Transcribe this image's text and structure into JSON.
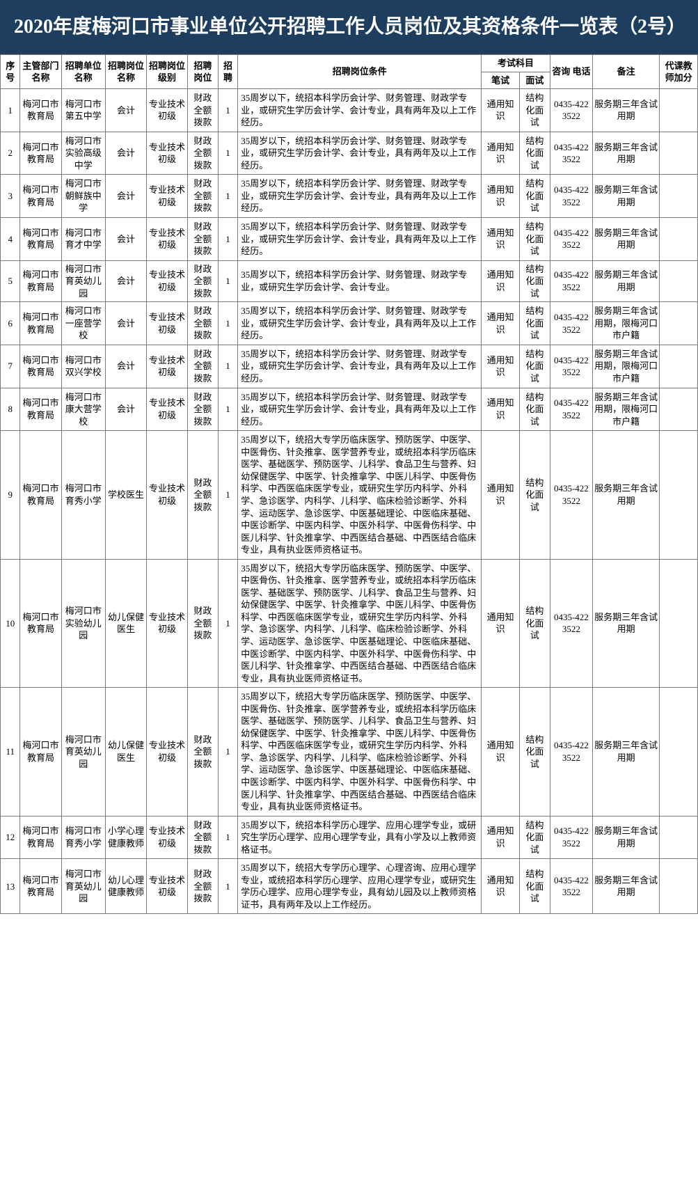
{
  "title": "2020年度梅河口市事业单位公开招聘工作人员岗位及其资格条件一览表（2号）",
  "headers": {
    "seq": "序号",
    "dept": "主管部门名称",
    "unit": "招聘单位名称",
    "pos": "招聘岗位名称",
    "level": "招聘岗位级别",
    "fund": "招聘岗位",
    "count": "招聘",
    "cond": "招聘岗位条件",
    "exam": "考试科目",
    "exam1": "笔试",
    "exam2": "面试",
    "phone": "咨询 电话",
    "note": "备注",
    "bonus": "代课教师加分"
  },
  "rows": [
    {
      "seq": "1",
      "dept": "梅河口市教育局",
      "unit": "梅河口市第五中学",
      "pos": "会计",
      "level": "专业技术初级",
      "fund": "财政全额拨款",
      "count": "1",
      "cond": "35周岁以下，统招本科学历会计学、财务管理、财政学专业，或研究生学历会计学、会计专业，具有两年及以上工作经历。",
      "exam1": "通用知识",
      "exam2": "结构化面试",
      "phone": "0435-4223522",
      "note": "服务期三年含试用期",
      "bonus": ""
    },
    {
      "seq": "2",
      "dept": "梅河口市教育局",
      "unit": "梅河口市实验高级中学",
      "pos": "会计",
      "level": "专业技术初级",
      "fund": "财政全额拨款",
      "count": "1",
      "cond": "35周岁以下，统招本科学历会计学、财务管理、财政学专业，或研究生学历会计学、会计专业，具有两年及以上工作经历。",
      "exam1": "通用知识",
      "exam2": "结构化面试",
      "phone": "0435-4223522",
      "note": "服务期三年含试用期",
      "bonus": ""
    },
    {
      "seq": "3",
      "dept": "梅河口市教育局",
      "unit": "梅河口市朝鲜族中学",
      "pos": "会计",
      "level": "专业技术初级",
      "fund": "财政全额拨款",
      "count": "1",
      "cond": "35周岁以下，统招本科学历会计学、财务管理、财政学专业，或研究生学历会计学、会计专业，具有两年及以上工作经历。",
      "exam1": "通用知识",
      "exam2": "结构化面试",
      "phone": "0435-4223522",
      "note": "服务期三年含试用期",
      "bonus": ""
    },
    {
      "seq": "4",
      "dept": "梅河口市教育局",
      "unit": "梅河口市育才中学",
      "pos": "会计",
      "level": "专业技术初级",
      "fund": "财政全额拨款",
      "count": "1",
      "cond": "35周岁以下，统招本科学历会计学、财务管理、财政学专业，或研究生学历会计学、会计专业，具有两年及以上工作经历。",
      "exam1": "通用知识",
      "exam2": "结构化面试",
      "phone": "0435-4223522",
      "note": "服务期三年含试用期",
      "bonus": ""
    },
    {
      "seq": "5",
      "dept": "梅河口市教育局",
      "unit": "梅河口市育英幼儿园",
      "pos": "会计",
      "level": "专业技术初级",
      "fund": "财政全额拨款",
      "count": "1",
      "cond": "35周岁以下，统招本科学历会计学、财务管理、财政学专业，或研究生学历会计学、会计专业。",
      "exam1": "通用知识",
      "exam2": "结构化面试",
      "phone": "0435-4223522",
      "note": "服务期三年含试用期",
      "bonus": ""
    },
    {
      "seq": "6",
      "dept": "梅河口市教育局",
      "unit": "梅河口市一座营学校",
      "pos": "会计",
      "level": "专业技术初级",
      "fund": "财政全额拨款",
      "count": "1",
      "cond": "35周岁以下，统招本科学历会计学、财务管理、财政学专业，或研究生学历会计学、会计专业，具有两年及以上工作经历。",
      "exam1": "通用知识",
      "exam2": "结构化面试",
      "phone": "0435-4223522",
      "note": "服务期三年含试用期，限梅河口市户籍",
      "bonus": ""
    },
    {
      "seq": "7",
      "dept": "梅河口市教育局",
      "unit": "梅河口市双兴学校",
      "pos": "会计",
      "level": "专业技术初级",
      "fund": "财政全额拨款",
      "count": "1",
      "cond": "35周岁以下，统招本科学历会计学、财务管理、财政学专业，或研究生学历会计学、会计专业，具有两年及以上工作经历。",
      "exam1": "通用知识",
      "exam2": "结构化面试",
      "phone": "0435-4223522",
      "note": "服务期三年含试用期，限梅河口市户籍",
      "bonus": ""
    },
    {
      "seq": "8",
      "dept": "梅河口市教育局",
      "unit": "梅河口市康大营学校",
      "pos": "会计",
      "level": "专业技术初级",
      "fund": "财政全额拨款",
      "count": "1",
      "cond": "35周岁以下，统招本科学历会计学、财务管理、财政学专业，或研究生学历会计学、会计专业，具有两年及以上工作经历。",
      "exam1": "通用知识",
      "exam2": "结构化面试",
      "phone": "0435-4223522",
      "note": "服务期三年含试用期，限梅河口市户籍",
      "bonus": ""
    },
    {
      "seq": "9",
      "dept": "梅河口市教育局",
      "unit": "梅河口市育秀小学",
      "pos": "学校医生",
      "level": "专业技术初级",
      "fund": "财政全额拨款",
      "count": "1",
      "cond": "35周岁以下，统招大专学历临床医学、预防医学、中医学、中医骨伤、针灸推拿、医学营养专业，或统招本科学历临床医学、基础医学、预防医学、儿科学、食品卫生与营养、妇幼保健医学、中医学、针灸推拿学、中医儿科学、中医骨伤科学、中西医临床医学专业，或研究生学历内科学、外科学、急诊医学、内科学、儿科学、临床检验诊断学、外科学、运动医学、急诊医学、中医基础理论、中医临床基础、中医诊断学、中医内科学、中医外科学、中医骨伤科学、中医儿科学、针灸推拿学、中西医结合基础、中西医结合临床专业，具有执业医师资格证书。",
      "exam1": "通用知识",
      "exam2": "结构化面试",
      "phone": "0435-4223522",
      "note": "服务期三年含试用期",
      "bonus": ""
    },
    {
      "seq": "10",
      "dept": "梅河口市教育局",
      "unit": "梅河口市实验幼儿园",
      "pos": "幼儿保健医生",
      "level": "专业技术初级",
      "fund": "财政全额拨款",
      "count": "1",
      "cond": "35周岁以下，统招大专学历临床医学、预防医学、中医学、中医骨伤、针灸推拿、医学营养专业，或统招本科学历临床医学、基础医学、预防医学、儿科学、食品卫生与营养、妇幼保健医学、中医学、针灸推拿学、中医儿科学、中医骨伤科学、中西医临床医学专业，或研究生学历内科学、外科学、急诊医学、内科学、儿科学、临床检验诊断学、外科学、运动医学、急诊医学、中医基础理论、中医临床基础、中医诊断学、中医内科学、中医外科学、中医骨伤科学、中医儿科学、针灸推拿学、中西医结合基础、中西医结合临床专业，具有执业医师资格证书。",
      "exam1": "通用知识",
      "exam2": "结构化面试",
      "phone": "0435-4223522",
      "note": "服务期三年含试用期",
      "bonus": ""
    },
    {
      "seq": "11",
      "dept": "梅河口市教育局",
      "unit": "梅河口市育英幼儿园",
      "pos": "幼儿保健医生",
      "level": "专业技术初级",
      "fund": "财政全额拨款",
      "count": "1",
      "cond": "35周岁以下，统招大专学历临床医学、预防医学、中医学、中医骨伤、针灸推拿、医学营养专业，或统招本科学历临床医学、基础医学、预防医学、儿科学、食品卫生与营养、妇幼保健医学、中医学、针灸推拿学、中医儿科学、中医骨伤科学、中西医临床医学专业，或研究生学历内科学、外科学、急诊医学、内科学、儿科学、临床检验诊断学、外科学、运动医学、急诊医学、中医基础理论、中医临床基础、中医诊断学、中医内科学、中医外科学、中医骨伤科学、中医儿科学、针灸推拿学、中西医结合基础、中西医结合临床专业，具有执业医师资格证书。",
      "exam1": "通用知识",
      "exam2": "结构化面试",
      "phone": "0435-4223522",
      "note": "服务期三年含试用期",
      "bonus": ""
    },
    {
      "seq": "12",
      "dept": "梅河口市教育局",
      "unit": "梅河口市育秀小学",
      "pos": "小学心理健康教师",
      "level": "专业技术初级",
      "fund": "财政全额拨款",
      "count": "1",
      "cond": "35周岁以下，统招本科学历心理学、应用心理学专业，或研究生学历心理学、应用心理学专业，具有小学及以上教师资格证书。",
      "exam1": "通用知识",
      "exam2": "结构化面试",
      "phone": "0435-4223522",
      "note": "服务期三年含试用期",
      "bonus": ""
    },
    {
      "seq": "13",
      "dept": "梅河口市教育局",
      "unit": "梅河口市育英幼儿园",
      "pos": "幼儿心理健康教师",
      "level": "专业技术初级",
      "fund": "财政全额拨款",
      "count": "1",
      "cond": "35周岁以下，统招大专学历心理学、心理咨询、应用心理学专业，或统招本科学历心理学、应用心理学专业，或研究生学历心理学、应用心理学专业，具有幼儿园及以上教师资格证书，具有两年及以上工作经历。",
      "exam1": "通用知识",
      "exam2": "结构化面试",
      "phone": "0435-4223522",
      "note": "服务期三年含试用期",
      "bonus": ""
    }
  ]
}
